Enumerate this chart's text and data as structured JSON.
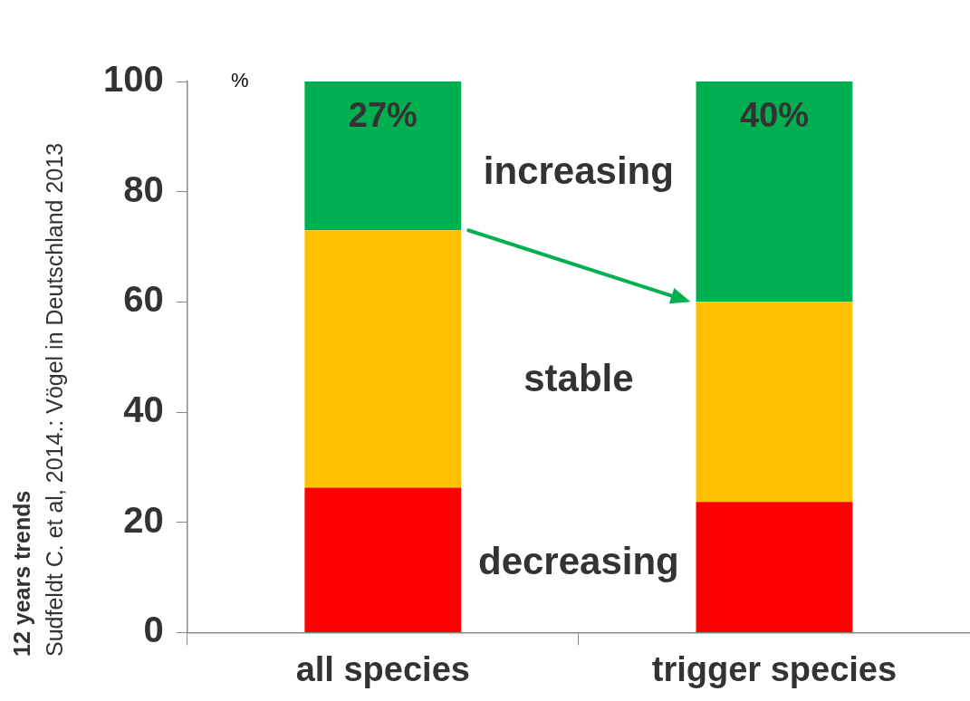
{
  "chart_data": {
    "type": "bar",
    "stacked": true,
    "categories": [
      "all species",
      "trigger species"
    ],
    "ylabel": "%",
    "ylim": [
      0,
      100
    ],
    "yticks": [
      0,
      20,
      40,
      60,
      80,
      100
    ],
    "grid": false,
    "legend": false,
    "annotations": [
      "12 years trends",
      "Sudfeldt C. et al, 2014.: Vögel in Deutschland 2013"
    ],
    "series": [
      {
        "name": "decreasing",
        "color": "#ff0000",
        "values": [
          26.3,
          23.7
        ]
      },
      {
        "name": "stable",
        "color": "#ffc000",
        "values": [
          46.7,
          36.3
        ]
      },
      {
        "name": "increasing",
        "color": "#00b050",
        "values": [
          27,
          40
        ],
        "value_labels": [
          "27%",
          "40%"
        ]
      }
    ]
  }
}
